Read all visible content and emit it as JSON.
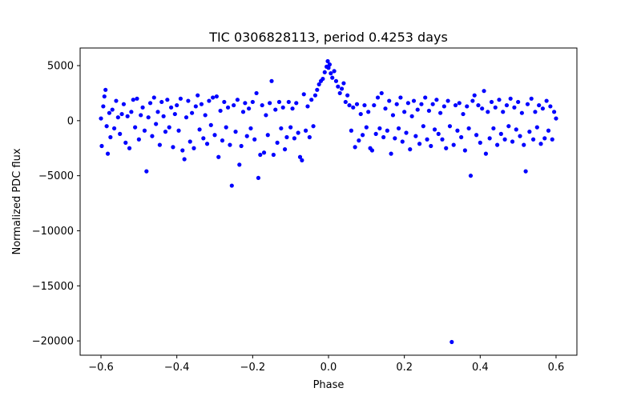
{
  "chart_data": {
    "type": "scatter",
    "title": "TIC 0306828113, period 0.4253 days",
    "xlabel": "Phase",
    "ylabel": "Normalized PDC flux",
    "xlim": [
      -0.655,
      0.655
    ],
    "ylim": [
      -21300,
      6600
    ],
    "x_ticks": [
      -0.6,
      -0.4,
      -0.2,
      0.0,
      0.2,
      0.4,
      0.6
    ],
    "x_tick_labels": [
      "−0.6",
      "−0.4",
      "−0.2",
      "0.0",
      "0.2",
      "0.4",
      "0.6"
    ],
    "y_ticks": [
      -20000,
      -15000,
      -10000,
      -5000,
      0,
      5000
    ],
    "y_tick_labels": [
      "−20000",
      "−15000",
      "−10000",
      "−5000",
      "0",
      "5000"
    ],
    "grid": false,
    "marker_color": "#0000ff",
    "series": [
      {
        "name": "flux",
        "points": [
          [
            -0.6,
            200
          ],
          [
            -0.598,
            -2300
          ],
          [
            -0.594,
            1300
          ],
          [
            -0.591,
            2200
          ],
          [
            -0.588,
            2800
          ],
          [
            -0.585,
            -500
          ],
          [
            -0.582,
            -3000
          ],
          [
            -0.578,
            700
          ],
          [
            -0.575,
            -1500
          ],
          [
            -0.57,
            1000
          ],
          [
            -0.565,
            -700
          ],
          [
            -0.56,
            1800
          ],
          [
            -0.555,
            300
          ],
          [
            -0.55,
            -1200
          ],
          [
            -0.545,
            600
          ],
          [
            -0.54,
            1500
          ],
          [
            -0.535,
            -2000
          ],
          [
            -0.53,
            400
          ],
          [
            -0.525,
            -2500
          ],
          [
            -0.52,
            800
          ],
          [
            -0.515,
            1900
          ],
          [
            -0.51,
            -600
          ],
          [
            -0.505,
            2000
          ],
          [
            -0.5,
            -1700
          ],
          [
            -0.495,
            500
          ],
          [
            -0.49,
            1200
          ],
          [
            -0.485,
            -900
          ],
          [
            -0.48,
            -4600
          ],
          [
            -0.475,
            300
          ],
          [
            -0.47,
            1600
          ],
          [
            -0.465,
            -1400
          ],
          [
            -0.46,
            2100
          ],
          [
            -0.455,
            -300
          ],
          [
            -0.45,
            800
          ],
          [
            -0.445,
            -2200
          ],
          [
            -0.44,
            1700
          ],
          [
            -0.435,
            400
          ],
          [
            -0.43,
            -1000
          ],
          [
            -0.425,
            1900
          ],
          [
            -0.42,
            -600
          ],
          [
            -0.415,
            1200
          ],
          [
            -0.41,
            -2400
          ],
          [
            -0.405,
            600
          ],
          [
            -0.4,
            1400
          ],
          [
            -0.395,
            -900
          ],
          [
            -0.39,
            2000
          ],
          [
            -0.385,
            -2700
          ],
          [
            -0.38,
            -3500
          ],
          [
            -0.375,
            300
          ],
          [
            -0.37,
            1800
          ],
          [
            -0.365,
            -1900
          ],
          [
            -0.36,
            700
          ],
          [
            -0.355,
            -2500
          ],
          [
            -0.35,
            1300
          ],
          [
            -0.345,
            2300
          ],
          [
            -0.34,
            -800
          ],
          [
            -0.335,
            1500
          ],
          [
            -0.33,
            -1600
          ],
          [
            -0.325,
            500
          ],
          [
            -0.32,
            -2100
          ],
          [
            -0.315,
            1800
          ],
          [
            -0.31,
            -400
          ],
          [
            -0.305,
            2100
          ],
          [
            -0.3,
            -1300
          ],
          [
            -0.295,
            2200
          ],
          [
            -0.29,
            -3300
          ],
          [
            -0.285,
            900
          ],
          [
            -0.28,
            -1800
          ],
          [
            -0.275,
            1700
          ],
          [
            -0.27,
            -600
          ],
          [
            -0.265,
            1200
          ],
          [
            -0.26,
            -2200
          ],
          [
            -0.255,
            -5900
          ],
          [
            -0.25,
            1400
          ],
          [
            -0.245,
            -1000
          ],
          [
            -0.24,
            1900
          ],
          [
            -0.235,
            -4000
          ],
          [
            -0.23,
            -2300
          ],
          [
            -0.225,
            800
          ],
          [
            -0.22,
            1600
          ],
          [
            -0.215,
            -1400
          ],
          [
            -0.21,
            1100
          ],
          [
            -0.205,
            -700
          ],
          [
            -0.2,
            1700
          ],
          [
            -0.195,
            -1700
          ],
          [
            -0.19,
            2500
          ],
          [
            -0.185,
            -5200
          ],
          [
            -0.18,
            -3100
          ],
          [
            -0.175,
            1400
          ],
          [
            -0.17,
            -2900
          ],
          [
            -0.165,
            500
          ],
          [
            -0.16,
            -1300
          ],
          [
            -0.155,
            1600
          ],
          [
            -0.15,
            3600
          ],
          [
            -0.145,
            -3100
          ],
          [
            -0.14,
            1000
          ],
          [
            -0.135,
            -2000
          ],
          [
            -0.13,
            1700
          ],
          [
            -0.125,
            -700
          ],
          [
            -0.12,
            1200
          ],
          [
            -0.115,
            -2600
          ],
          [
            -0.11,
            -1500
          ],
          [
            -0.105,
            1700
          ],
          [
            -0.1,
            -600
          ],
          [
            -0.095,
            1100
          ],
          [
            -0.09,
            -1600
          ],
          [
            -0.085,
            1600
          ],
          [
            -0.08,
            -1100
          ],
          [
            -0.075,
            -3300
          ],
          [
            -0.07,
            -3600
          ],
          [
            -0.065,
            2400
          ],
          [
            -0.06,
            -900
          ],
          [
            -0.055,
            1300
          ],
          [
            -0.05,
            -1500
          ],
          [
            -0.045,
            1900
          ],
          [
            -0.04,
            -500
          ],
          [
            -0.035,
            2300
          ],
          [
            -0.03,
            2800
          ],
          [
            -0.025,
            3300
          ],
          [
            -0.02,
            3600
          ],
          [
            -0.015,
            3800
          ],
          [
            -0.01,
            4400
          ],
          [
            -0.005,
            4900
          ],
          [
            -0.002,
            5400
          ],
          [
            0.0,
            4800
          ],
          [
            0.003,
            5100
          ],
          [
            0.006,
            4300
          ],
          [
            0.01,
            3900
          ],
          [
            0.015,
            4500
          ],
          [
            0.02,
            3600
          ],
          [
            0.025,
            3100
          ],
          [
            0.03,
            2500
          ],
          [
            0.035,
            2900
          ],
          [
            0.04,
            3400
          ],
          [
            0.045,
            1700
          ],
          [
            0.05,
            2300
          ],
          [
            0.055,
            1400
          ],
          [
            0.06,
            -900
          ],
          [
            0.065,
            1200
          ],
          [
            0.07,
            -2400
          ],
          [
            0.075,
            1500
          ],
          [
            0.08,
            -1800
          ],
          [
            0.085,
            600
          ],
          [
            0.09,
            -1300
          ],
          [
            0.095,
            1400
          ],
          [
            0.1,
            -600
          ],
          [
            0.105,
            800
          ],
          [
            0.11,
            -2500
          ],
          [
            0.115,
            -2700
          ],
          [
            0.12,
            1400
          ],
          [
            0.125,
            -1200
          ],
          [
            0.13,
            2100
          ],
          [
            0.135,
            -700
          ],
          [
            0.14,
            2500
          ],
          [
            0.145,
            -1500
          ],
          [
            0.15,
            1100
          ],
          [
            0.155,
            -900
          ],
          [
            0.16,
            1800
          ],
          [
            0.165,
            -3000
          ],
          [
            0.17,
            500
          ],
          [
            0.175,
            -1600
          ],
          [
            0.18,
            1500
          ],
          [
            0.185,
            -700
          ],
          [
            0.19,
            2100
          ],
          [
            0.195,
            -1900
          ],
          [
            0.2,
            800
          ],
          [
            0.205,
            -1100
          ],
          [
            0.21,
            1600
          ],
          [
            0.215,
            -2600
          ],
          [
            0.22,
            400
          ],
          [
            0.225,
            1800
          ],
          [
            0.23,
            -1400
          ],
          [
            0.235,
            1000
          ],
          [
            0.24,
            -2100
          ],
          [
            0.245,
            1500
          ],
          [
            0.25,
            -500
          ],
          [
            0.255,
            2100
          ],
          [
            0.26,
            -1700
          ],
          [
            0.265,
            900
          ],
          [
            0.27,
            -2300
          ],
          [
            0.275,
            1500
          ],
          [
            0.28,
            -800
          ],
          [
            0.285,
            1900
          ],
          [
            0.29,
            -1200
          ],
          [
            0.295,
            700
          ],
          [
            0.3,
            -1700
          ],
          [
            0.305,
            1300
          ],
          [
            0.31,
            -2500
          ],
          [
            0.315,
            1800
          ],
          [
            0.32,
            -500
          ],
          [
            0.325,
            -20100
          ],
          [
            0.33,
            -2200
          ],
          [
            0.335,
            1400
          ],
          [
            0.34,
            -900
          ],
          [
            0.345,
            1600
          ],
          [
            0.35,
            -1500
          ],
          [
            0.355,
            600
          ],
          [
            0.36,
            -2700
          ],
          [
            0.365,
            1300
          ],
          [
            0.37,
            -700
          ],
          [
            0.375,
            -5000
          ],
          [
            0.38,
            1800
          ],
          [
            0.385,
            2300
          ],
          [
            0.39,
            -1300
          ],
          [
            0.395,
            1400
          ],
          [
            0.4,
            -2000
          ],
          [
            0.405,
            1100
          ],
          [
            0.41,
            2700
          ],
          [
            0.415,
            -3000
          ],
          [
            0.42,
            800
          ],
          [
            0.425,
            -1600
          ],
          [
            0.43,
            1700
          ],
          [
            0.435,
            -700
          ],
          [
            0.44,
            1200
          ],
          [
            0.445,
            -2200
          ],
          [
            0.45,
            1900
          ],
          [
            0.455,
            -1200
          ],
          [
            0.46,
            800
          ],
          [
            0.465,
            -1700
          ],
          [
            0.47,
            1400
          ],
          [
            0.475,
            -500
          ],
          [
            0.48,
            2000
          ],
          [
            0.485,
            -1900
          ],
          [
            0.49,
            1200
          ],
          [
            0.495,
            -800
          ],
          [
            0.5,
            1700
          ],
          [
            0.505,
            -1400
          ],
          [
            0.51,
            700
          ],
          [
            0.515,
            -2200
          ],
          [
            0.52,
            -4600
          ],
          [
            0.525,
            1500
          ],
          [
            0.53,
            -1000
          ],
          [
            0.535,
            2000
          ],
          [
            0.54,
            -1700
          ],
          [
            0.545,
            800
          ],
          [
            0.55,
            -600
          ],
          [
            0.555,
            1400
          ],
          [
            0.56,
            -2100
          ],
          [
            0.565,
            1100
          ],
          [
            0.57,
            -1600
          ],
          [
            0.575,
            1800
          ],
          [
            0.58,
            -900
          ],
          [
            0.585,
            1300
          ],
          [
            0.59,
            -1700
          ],
          [
            0.595,
            800
          ],
          [
            0.6,
            200
          ]
        ]
      }
    ]
  }
}
